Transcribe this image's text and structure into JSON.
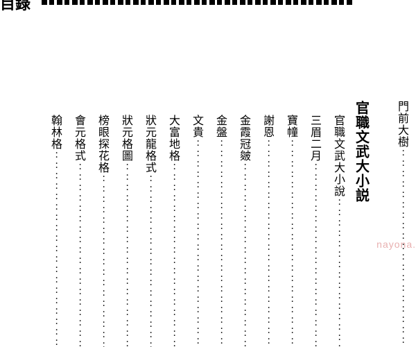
{
  "header": {
    "title": "目錄"
  },
  "watermark": "nayona.",
  "dots_char": "：：：：：：：：：：：：：：：：：：：：：：：：",
  "columns": [
    {
      "text": "門前大樹",
      "is_section": false,
      "indent": false,
      "has_dots": true
    },
    {
      "text": "",
      "is_section": false,
      "indent": false,
      "has_dots": false,
      "spacer": true
    },
    {
      "text": "官職文武大小説",
      "is_section": true,
      "indent": false,
      "has_dots": false
    },
    {
      "text": "官職文武大小說",
      "is_section": false,
      "indent": true,
      "has_dots": true
    },
    {
      "text": "三眉二月",
      "is_section": false,
      "indent": true,
      "has_dots": true
    },
    {
      "text": "寶幢",
      "is_section": false,
      "indent": true,
      "has_dots": true
    },
    {
      "text": "謝恩",
      "is_section": false,
      "indent": true,
      "has_dots": true
    },
    {
      "text": "金霞冠皴",
      "is_section": false,
      "indent": true,
      "has_dots": true
    },
    {
      "text": "金盤",
      "is_section": false,
      "indent": true,
      "has_dots": true
    },
    {
      "text": "文貴",
      "is_section": false,
      "indent": true,
      "has_dots": true
    },
    {
      "text": "大富地格",
      "is_section": false,
      "indent": true,
      "has_dots": true
    },
    {
      "text": "狀元龍格式",
      "is_section": false,
      "indent": true,
      "has_dots": true
    },
    {
      "text": "狀元格圖",
      "is_section": false,
      "indent": true,
      "has_dots": true
    },
    {
      "text": "榜眼探花格",
      "is_section": false,
      "indent": true,
      "has_dots": true
    },
    {
      "text": "會元格式",
      "is_section": false,
      "indent": true,
      "has_dots": true
    },
    {
      "text": "翰林格",
      "is_section": false,
      "indent": true,
      "has_dots": true
    }
  ]
}
